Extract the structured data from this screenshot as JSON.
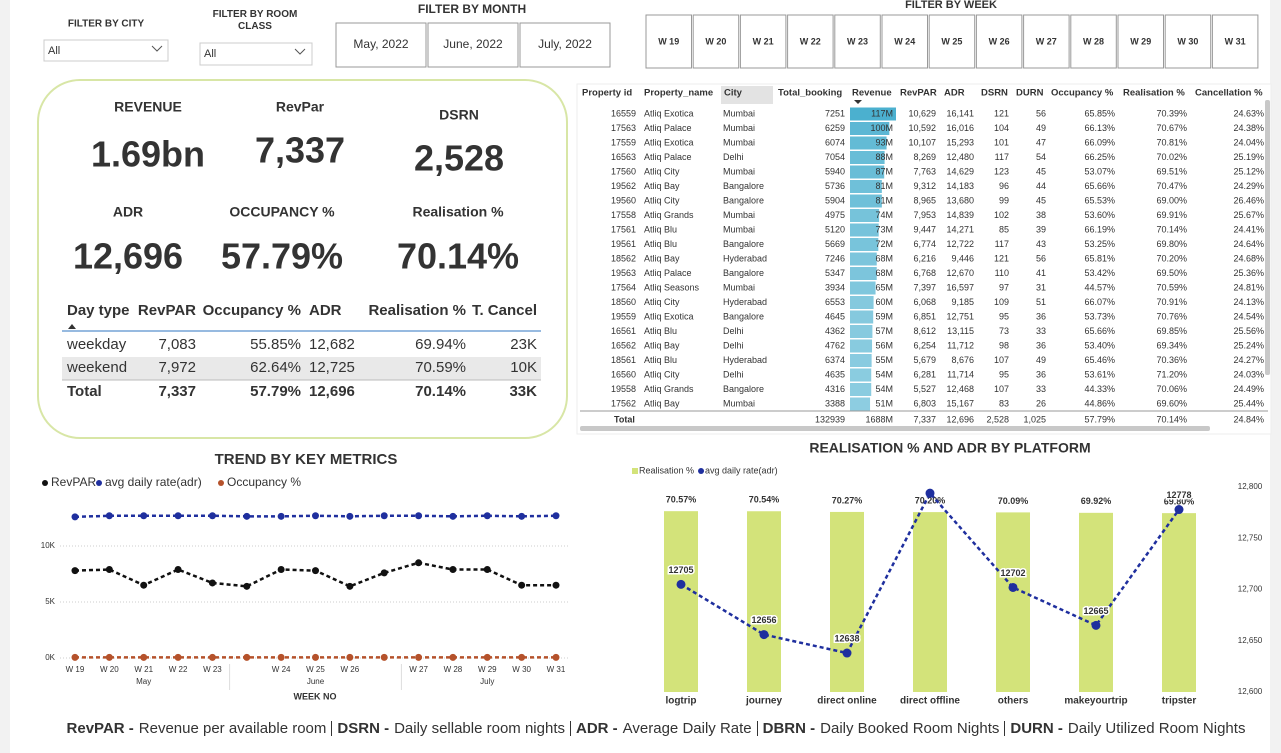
{
  "filters": {
    "city": {
      "label": "FILTER BY CITY",
      "value": "All"
    },
    "room_class": {
      "label": "FILTER BY ROOM CLASS",
      "value": "All"
    },
    "month": {
      "label": "FILTER BY MONTH",
      "options": [
        "May, 2022",
        "June, 2022",
        "July, 2022"
      ]
    },
    "week": {
      "label": "FILTER BY WEEK",
      "options": [
        "W 19",
        "W 20",
        "W 21",
        "W 22",
        "W 23",
        "W 24",
        "W 25",
        "W 26",
        "W 27",
        "W 28",
        "W 29",
        "W 30",
        "W 31"
      ]
    }
  },
  "kpis": [
    {
      "label": "REVENUE",
      "value": "1.69bn"
    },
    {
      "label": "RevPar",
      "value": "7,337"
    },
    {
      "label": "DSRN",
      "value": "2,528"
    },
    {
      "label": "ADR",
      "value": "12,696"
    },
    {
      "label": "OCCUPANCY %",
      "value": "57.79%"
    },
    {
      "label": "Realisation %",
      "value": "70.14%"
    }
  ],
  "day_type_table": {
    "columns": [
      "Day type",
      "RevPAR",
      "Occupancy %",
      "ADR",
      "Realisation %",
      "T. Cancel"
    ],
    "rows": [
      [
        "weekday",
        "7,083",
        "55.85%",
        "12,682",
        "69.94%",
        "23K"
      ],
      [
        "weekend",
        "7,972",
        "62.64%",
        "12,725",
        "70.59%",
        "10K"
      ],
      [
        "Total",
        "7,337",
        "57.79%",
        "12,696",
        "70.14%",
        "33K"
      ]
    ]
  },
  "property_table": {
    "columns": [
      "Property id",
      "Property_name",
      "City",
      "Total_booking",
      "Revenue",
      "RevPAR",
      "ADR",
      "DSRN",
      "DURN",
      "Occupancy %",
      "Realisation %",
      "Cancellation %"
    ],
    "rows": [
      [
        "16559",
        "Atliq Exotica",
        "Mumbai",
        "7251",
        "117M",
        "10,629",
        "16,141",
        "121",
        "56",
        "65.85%",
        "70.39%",
        "24.63%"
      ],
      [
        "17563",
        "Atliq Palace",
        "Mumbai",
        "6259",
        "100M",
        "10,592",
        "16,016",
        "104",
        "49",
        "66.13%",
        "70.67%",
        "24.38%"
      ],
      [
        "17559",
        "Atliq Exotica",
        "Mumbai",
        "6074",
        "93M",
        "10,107",
        "15,293",
        "101",
        "47",
        "66.09%",
        "70.81%",
        "24.04%"
      ],
      [
        "16563",
        "Atliq Palace",
        "Delhi",
        "7054",
        "88M",
        "8,269",
        "12,480",
        "117",
        "54",
        "66.25%",
        "70.02%",
        "25.19%"
      ],
      [
        "17560",
        "Atliq City",
        "Mumbai",
        "5940",
        "87M",
        "7,763",
        "14,629",
        "123",
        "45",
        "53.07%",
        "69.51%",
        "25.12%"
      ],
      [
        "19562",
        "Atliq Bay",
        "Bangalore",
        "5736",
        "81M",
        "9,312",
        "14,183",
        "96",
        "44",
        "65.66%",
        "70.47%",
        "24.29%"
      ],
      [
        "19560",
        "Atliq City",
        "Bangalore",
        "5904",
        "81M",
        "8,965",
        "13,680",
        "99",
        "45",
        "65.53%",
        "69.00%",
        "26.46%"
      ],
      [
        "17558",
        "Atliq Grands",
        "Mumbai",
        "4975",
        "74M",
        "7,953",
        "14,839",
        "102",
        "38",
        "53.60%",
        "69.91%",
        "25.67%"
      ],
      [
        "17561",
        "Atliq Blu",
        "Mumbai",
        "5120",
        "73M",
        "9,447",
        "14,271",
        "85",
        "39",
        "66.19%",
        "70.14%",
        "24.41%"
      ],
      [
        "19561",
        "Atliq Blu",
        "Bangalore",
        "5669",
        "72M",
        "6,774",
        "12,722",
        "117",
        "43",
        "53.25%",
        "69.80%",
        "24.64%"
      ],
      [
        "18562",
        "Atliq Bay",
        "Hyderabad",
        "7246",
        "68M",
        "6,216",
        "9,446",
        "121",
        "56",
        "65.81%",
        "70.20%",
        "24.68%"
      ],
      [
        "19563",
        "Atliq Palace",
        "Bangalore",
        "5347",
        "68M",
        "6,768",
        "12,670",
        "110",
        "41",
        "53.42%",
        "69.50%",
        "25.36%"
      ],
      [
        "17564",
        "Atliq Seasons",
        "Mumbai",
        "3934",
        "65M",
        "7,397",
        "16,597",
        "97",
        "31",
        "44.57%",
        "70.59%",
        "24.81%"
      ],
      [
        "18560",
        "Atliq City",
        "Hyderabad",
        "6553",
        "60M",
        "6,068",
        "9,185",
        "109",
        "51",
        "66.07%",
        "70.91%",
        "24.13%"
      ],
      [
        "19559",
        "Atliq Exotica",
        "Bangalore",
        "4645",
        "59M",
        "6,851",
        "12,751",
        "95",
        "36",
        "53.73%",
        "70.76%",
        "24.54%"
      ],
      [
        "16561",
        "Atliq Blu",
        "Delhi",
        "4362",
        "57M",
        "8,612",
        "13,115",
        "73",
        "33",
        "65.66%",
        "69.85%",
        "25.56%"
      ],
      [
        "16562",
        "Atliq Bay",
        "Delhi",
        "4762",
        "56M",
        "6,254",
        "11,712",
        "98",
        "36",
        "53.40%",
        "69.34%",
        "25.24%"
      ],
      [
        "18561",
        "Atliq Blu",
        "Hyderabad",
        "6374",
        "55M",
        "5,679",
        "8,676",
        "107",
        "49",
        "65.46%",
        "70.36%",
        "24.27%"
      ],
      [
        "16560",
        "Atliq City",
        "Delhi",
        "4635",
        "54M",
        "6,281",
        "11,714",
        "95",
        "36",
        "53.61%",
        "71.20%",
        "24.03%"
      ],
      [
        "19558",
        "Atliq Grands",
        "Bangalore",
        "4316",
        "54M",
        "5,527",
        "12,468",
        "107",
        "33",
        "44.33%",
        "70.06%",
        "24.49%"
      ],
      [
        "17562",
        "Atliq Bay",
        "Mumbai",
        "3388",
        "51M",
        "6,803",
        "15,167",
        "83",
        "26",
        "44.86%",
        "69.60%",
        "25.44%"
      ]
    ],
    "total": {
      "label": "Total",
      "cells": [
        "132939",
        "1688M",
        "7,337",
        "12,696",
        "2,528",
        "1,025",
        "57.79%",
        "70.14%",
        "24.84%"
      ]
    }
  },
  "chart_data": [
    {
      "type": "line",
      "title": "TREND BY KEY METRICS",
      "x_label": "WEEK NO",
      "categories": [
        "W 19",
        "W 20",
        "W 21",
        "W 22",
        "W 23",
        null,
        "W 24",
        "W 25",
        "W 26",
        null,
        "W 27",
        "W 28",
        "W 29",
        "W 30",
        "W 31"
      ],
      "x_groups": [
        {
          "label": "May",
          "first": 0,
          "last": 4
        },
        {
          "label": "June",
          "first": 5,
          "last": 9
        },
        {
          "label": "July",
          "first": 10,
          "last": 14
        }
      ],
      "ylim": [
        0,
        14000
      ],
      "yticks": [
        {
          "value": 0,
          "label": "0K"
        },
        {
          "value": 5000,
          "label": "5K"
        },
        {
          "value": 10000,
          "label": "10K"
        }
      ],
      "grid": true,
      "series": [
        {
          "name": "RevPAR",
          "color": "#111111",
          "values": [
            7800,
            7900,
            6500,
            7900,
            6700,
            6400,
            7900,
            7800,
            6400,
            7600,
            8500,
            7900,
            7900,
            6500,
            6500
          ]
        },
        {
          "name": "avg daily rate(adr)",
          "color": "#1f2f9e",
          "values": [
            12600,
            12700,
            12700,
            12700,
            12700,
            12650,
            12650,
            12700,
            12650,
            12700,
            12700,
            12650,
            12700,
            12650,
            12700
          ]
        },
        {
          "name": "Occupancy %",
          "color": "#b5522b",
          "values": [
            57,
            58,
            58,
            57,
            58,
            57,
            58,
            58,
            58,
            57,
            58,
            58,
            57,
            58,
            58
          ]
        }
      ]
    },
    {
      "type": "combo",
      "title": "REALISATION % AND ADR BY PLATFORM",
      "categories": [
        "logtrip",
        "journey",
        "direct online",
        "direct offline",
        "others",
        "makeyourtrip",
        "tripster"
      ],
      "ylim": [
        0,
        80
      ],
      "y2lim": [
        12600,
        12800
      ],
      "y2ticks": [
        {
          "value": 12600,
          "label": "12,600"
        },
        {
          "value": 12650,
          "label": "12,650"
        },
        {
          "value": 12700,
          "label": "12,700"
        },
        {
          "value": 12750,
          "label": "12,750"
        },
        {
          "value": 12800,
          "label": "12,800"
        }
      ],
      "series": [
        {
          "name": "Realisation %",
          "color": "#d3e37a",
          "values": [
            70.57,
            70.54,
            70.27,
            70.2,
            70.09,
            69.92,
            69.8
          ],
          "value_labels": [
            "70.57%",
            "70.54%",
            "70.27%",
            "70.20%",
            "70.09%",
            "69.92%",
            "69.80%"
          ]
        },
        {
          "name": "avg daily rate(adr)",
          "color": "#1f2f9e",
          "axis": "y2",
          "values": [
            12705,
            12656,
            12638,
            12794,
            12702,
            12665,
            12778
          ],
          "value_labels": [
            "12705",
            "12656",
            "12638",
            null,
            "12702",
            "12665",
            "12778"
          ]
        }
      ]
    }
  ],
  "footer": [
    {
      "term": "RevPAR -",
      "meaning": "Revenue per available room"
    },
    {
      "term": "DSRN -",
      "meaning": "Daily sellable room nights"
    },
    {
      "term": "ADR -",
      "meaning": "Average Daily Rate"
    },
    {
      "term": "DBRN -",
      "meaning": "Daily Booked Room Nights"
    },
    {
      "term": "DURN -",
      "meaning": "Daily Utilized Room Nights"
    }
  ]
}
